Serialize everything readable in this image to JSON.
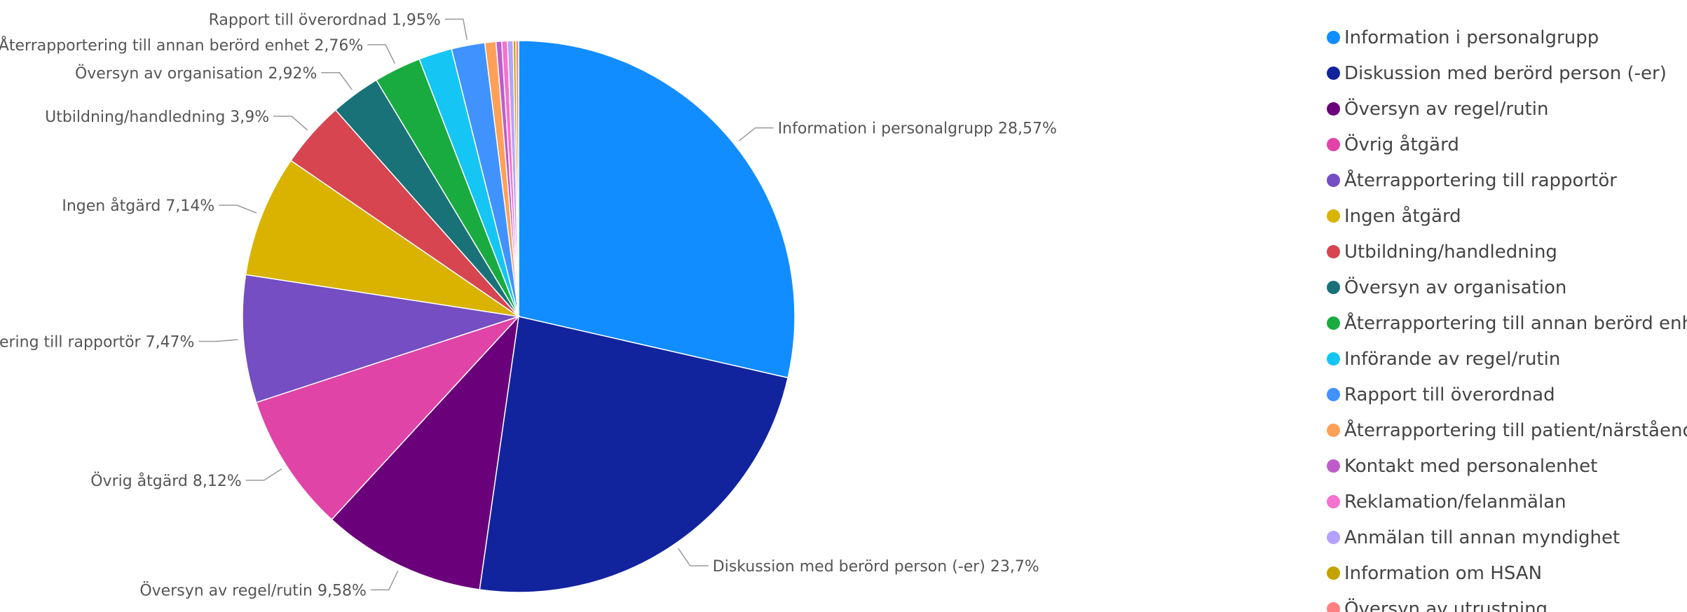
{
  "chart_data": {
    "type": "pie",
    "slices": [
      {
        "name": "Information i personalgrupp",
        "value": 28.57,
        "label": "Information i personalgrupp 28,57%",
        "color": "#118DFF"
      },
      {
        "name": "Diskussion med berörd person (-er)",
        "value": 23.7,
        "label": "Diskussion med berörd person (-er) 23,7%",
        "color": "#12239E"
      },
      {
        "name": "Översyn av regel/rutin",
        "value": 9.58,
        "label": "Översyn av regel/rutin 9,58%",
        "color": "#6B007B"
      },
      {
        "name": "Övrig åtgärd",
        "value": 8.12,
        "label": "Övrig åtgärd 8,12%",
        "color": "#E044A7"
      },
      {
        "name": "Återrapportering till rapportör",
        "value": 7.47,
        "label": "ering till rapportör 7,47%",
        "color": "#744EC2"
      },
      {
        "name": "Ingen åtgärd",
        "value": 7.14,
        "label": "Ingen åtgärd 7,14%",
        "color": "#D9B300"
      },
      {
        "name": "Utbildning/handledning",
        "value": 3.9,
        "label": "Utbildning/handledning 3,9%",
        "color": "#D64550"
      },
      {
        "name": "Översyn av organisation",
        "value": 2.92,
        "label": "Översyn av organisation 2,92%",
        "color": "#197278"
      },
      {
        "name": "Återrapportering till annan berörd enhet",
        "value": 2.76,
        "label": "Återrapportering till annan berörd enhet 2,76%",
        "color": "#1AAB40"
      },
      {
        "name": "Införande av regel/rutin",
        "value": 1.95,
        "label": "",
        "color": "#15C6F4"
      },
      {
        "name": "Rapport till överordnad",
        "value": 1.95,
        "label": "Rapport till överordnad 1,95%",
        "color": "#4092FF"
      },
      {
        "name": "Återrapportering till patient/närstående",
        "value": 0.65,
        "label": "",
        "color": "#FFA058"
      },
      {
        "name": "Kontakt med personalenhet",
        "value": 0.33,
        "label": "",
        "color": "#BE5DC9"
      },
      {
        "name": "Reklamation/felanmälan",
        "value": 0.33,
        "label": "",
        "color": "#F472D0"
      },
      {
        "name": "Anmälan till annan myndighet",
        "value": 0.33,
        "label": "",
        "color": "#B5A1FF"
      },
      {
        "name": "Information om HSAN",
        "value": 0.16,
        "label": "",
        "color": "#C4A200"
      },
      {
        "name": "Översyn av utrustning",
        "value": 0.16,
        "label": "",
        "color": "#FF8080"
      }
    ]
  }
}
